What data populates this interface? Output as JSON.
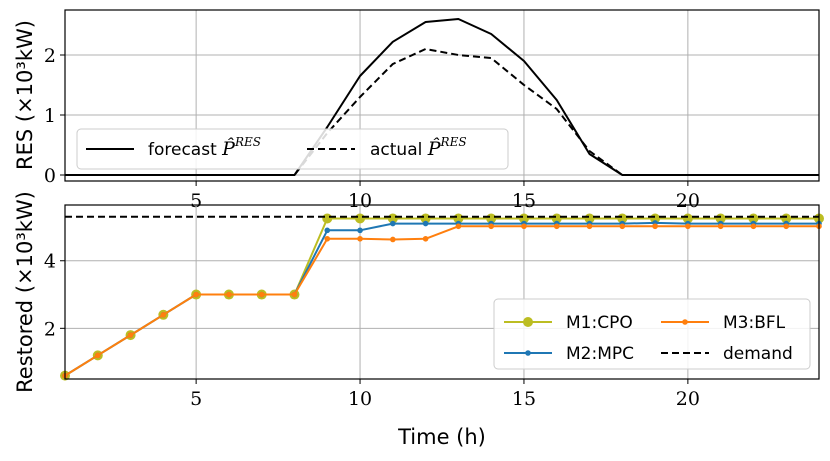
{
  "chart_data": [
    {
      "type": "line",
      "ylabel": "RES (×10³kW)",
      "xlabel": "",
      "xlim": [
        1,
        24
      ],
      "ylim": [
        -0.1,
        2.75
      ],
      "xticks": [
        5,
        10,
        15,
        20
      ],
      "yticks": [
        0,
        1,
        2
      ],
      "grid": true,
      "legend": "bottom-left",
      "x": [
        1,
        2,
        3,
        4,
        5,
        6,
        7,
        8,
        9,
        10,
        11,
        12,
        13,
        14,
        15,
        16,
        17,
        18,
        19,
        20,
        21,
        22,
        23,
        24
      ],
      "series": [
        {
          "name": "forecast P̂^RES",
          "legend_label": "forecast",
          "legend_math": "P̂",
          "legend_sup": "RES",
          "color": "#000000",
          "dash": "solid",
          "values": [
            0,
            0,
            0,
            0,
            0,
            0,
            0,
            0,
            0.8,
            1.65,
            2.22,
            2.55,
            2.6,
            2.35,
            1.9,
            1.25,
            0.35,
            0,
            0,
            0,
            0,
            0,
            0,
            0
          ]
        },
        {
          "name": "actual P̂^RES",
          "legend_label": "actual",
          "legend_math": "P̂",
          "legend_sup": "RES",
          "color": "#000000",
          "dash": "dashed",
          "values": [
            0,
            0,
            0,
            0,
            0,
            0,
            0,
            0,
            0.7,
            1.3,
            1.85,
            2.1,
            2.0,
            1.95,
            1.5,
            1.1,
            0.4,
            0,
            0,
            0,
            0,
            0,
            0,
            0
          ]
        }
      ]
    },
    {
      "type": "line",
      "ylabel": "Restored (×10³kW)",
      "xlabel": "Time (h)",
      "xlim": [
        1,
        24
      ],
      "ylim": [
        0.5,
        5.65
      ],
      "xticks": [
        5,
        10,
        15,
        20
      ],
      "yticks": [
        2,
        4
      ],
      "grid": true,
      "legend": "bottom-right",
      "x": [
        1,
        2,
        3,
        4,
        5,
        6,
        7,
        8,
        9,
        10,
        11,
        12,
        13,
        14,
        15,
        16,
        17,
        18,
        19,
        20,
        21,
        22,
        23,
        24
      ],
      "series": [
        {
          "name": "M1:CPO",
          "color": "#bcbd22",
          "dash": "solid",
          "marker": "large",
          "values": [
            0.6,
            1.2,
            1.8,
            2.4,
            3.0,
            3.0,
            3.0,
            3.0,
            5.25,
            5.25,
            5.25,
            5.25,
            5.25,
            5.25,
            5.25,
            5.25,
            5.25,
            5.25,
            5.25,
            5.25,
            5.25,
            5.25,
            5.25,
            5.25
          ]
        },
        {
          "name": "M2:MPC",
          "color": "#1f77b4",
          "dash": "solid",
          "marker": "small",
          "values": [
            0.6,
            1.2,
            1.8,
            2.4,
            3.0,
            3.0,
            3.0,
            3.0,
            4.9,
            4.9,
            5.1,
            5.1,
            5.1,
            5.1,
            5.1,
            5.1,
            5.1,
            5.1,
            5.12,
            5.1,
            5.1,
            5.1,
            5.1,
            5.1
          ]
        },
        {
          "name": "M3:BFL",
          "color": "#ff7f0e",
          "dash": "solid",
          "marker": "small",
          "values": [
            0.6,
            1.2,
            1.8,
            2.4,
            3.0,
            3.0,
            3.0,
            3.0,
            4.65,
            4.65,
            4.63,
            4.65,
            5.02,
            5.02,
            5.02,
            5.02,
            5.02,
            5.02,
            5.02,
            5.02,
            5.02,
            5.02,
            5.02,
            5.02
          ]
        },
        {
          "name": "demand",
          "color": "#000000",
          "dash": "dashed",
          "marker": "none",
          "values": [
            5.3,
            5.3,
            5.3,
            5.3,
            5.3,
            5.3,
            5.3,
            5.3,
            5.3,
            5.3,
            5.3,
            5.3,
            5.3,
            5.3,
            5.3,
            5.3,
            5.3,
            5.3,
            5.3,
            5.3,
            5.3,
            5.3,
            5.3,
            5.3
          ]
        }
      ]
    }
  ]
}
